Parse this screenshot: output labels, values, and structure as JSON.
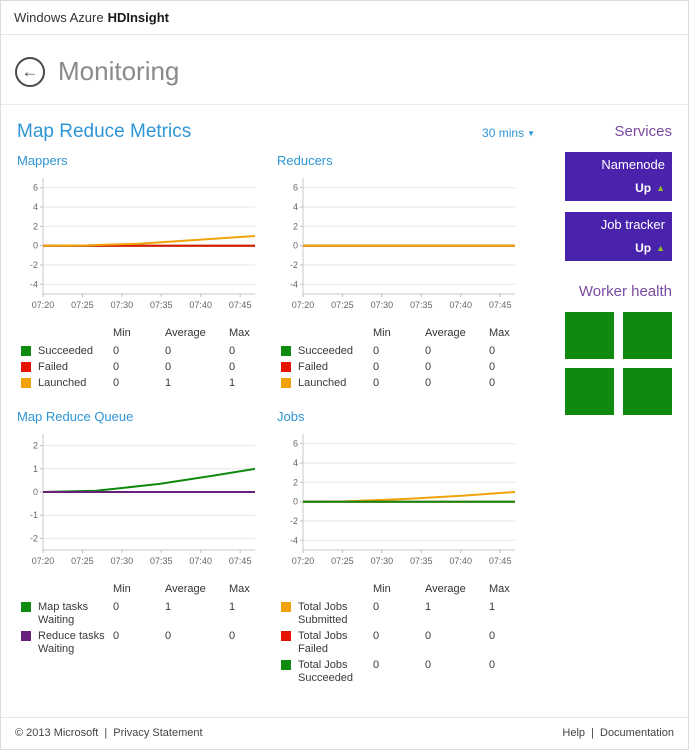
{
  "topbar": {
    "brand": "Windows Azure",
    "product": "HDInsight"
  },
  "page": {
    "title": "Monitoring"
  },
  "icons": {
    "back_arrow": "←",
    "caret_down": "▼",
    "up_triangle": "▲"
  },
  "colors": {
    "accent_blue": "#2e96d5",
    "heading_purple": "#7b4aa0",
    "tile_purple": "#4a23ad",
    "status_up_green": "#8cbf26",
    "worker_green": "#0e8a0e",
    "series_green": "#0e8a0e",
    "series_red": "#e51400",
    "series_orange": "#f0a30a",
    "series_purple": "#68217a"
  },
  "metrics": {
    "title": "Map Reduce Metrics",
    "time_range": "30 mins",
    "charts": [
      {
        "id": "mappers",
        "type": "line",
        "title": "Mappers",
        "yticks": [
          6,
          4,
          2,
          0,
          -2,
          -4
        ],
        "ymin": -5,
        "ymax": 7,
        "xticks": [
          "07:20",
          "07:25",
          "07:30",
          "07:35",
          "07:40",
          "07:45"
        ],
        "columns": [
          "Min",
          "Average",
          "Max"
        ],
        "series": [
          {
            "name": "Succeeded",
            "color": "#0e8a0e",
            "min": 0,
            "avg": 0,
            "max": 0,
            "points": [
              [
                0,
                0
              ],
              [
                1,
                0
              ]
            ]
          },
          {
            "name": "Failed",
            "color": "#e51400",
            "min": 0,
            "avg": 0,
            "max": 0,
            "points": [
              [
                0,
                0
              ],
              [
                1,
                0
              ]
            ]
          },
          {
            "name": "Launched",
            "color": "#f0a30a",
            "min": 0,
            "avg": 1,
            "max": 1,
            "points": [
              [
                0,
                0
              ],
              [
                0.2,
                0.03
              ],
              [
                0.45,
                0.2
              ],
              [
                0.7,
                0.55
              ],
              [
                1,
                1
              ]
            ]
          }
        ]
      },
      {
        "id": "reducers",
        "type": "line",
        "title": "Reducers",
        "yticks": [
          6,
          4,
          2,
          0,
          -2,
          -4
        ],
        "ymin": -5,
        "ymax": 7,
        "xticks": [
          "07:20",
          "07:25",
          "07:30",
          "07:35",
          "07:40",
          "07:45"
        ],
        "columns": [
          "Min",
          "Average",
          "Max"
        ],
        "series": [
          {
            "name": "Succeeded",
            "color": "#0e8a0e",
            "min": 0,
            "avg": 0,
            "max": 0,
            "points": [
              [
                0,
                0
              ],
              [
                1,
                0
              ]
            ]
          },
          {
            "name": "Failed",
            "color": "#e51400",
            "min": 0,
            "avg": 0,
            "max": 0,
            "points": [
              [
                0,
                0
              ],
              [
                1,
                0
              ]
            ]
          },
          {
            "name": "Launched",
            "color": "#f0a30a",
            "min": 0,
            "avg": 0,
            "max": 0,
            "points": [
              [
                0,
                0
              ],
              [
                1,
                0
              ]
            ]
          }
        ]
      },
      {
        "id": "map-reduce-queue",
        "type": "line",
        "title": "Map Reduce Queue",
        "yticks": [
          2,
          1,
          0,
          -1,
          -2
        ],
        "ymin": -2.5,
        "ymax": 2.5,
        "xticks": [
          "07:20",
          "07:25",
          "07:30",
          "07:35",
          "07:40",
          "07:45"
        ],
        "columns": [
          "Min",
          "Average",
          "Max"
        ],
        "series": [
          {
            "name": "Map tasks Waiting",
            "color": "#0e8a0e",
            "min": 0,
            "avg": 1,
            "max": 1,
            "points": [
              [
                0,
                0
              ],
              [
                0.25,
                0.05
              ],
              [
                0.55,
                0.35
              ],
              [
                0.8,
                0.7
              ],
              [
                1,
                1
              ]
            ]
          },
          {
            "name": "Reduce tasks Waiting",
            "color": "#68217a",
            "min": 0,
            "avg": 0,
            "max": 0,
            "points": [
              [
                0,
                0
              ],
              [
                1,
                0
              ]
            ]
          }
        ]
      },
      {
        "id": "jobs",
        "type": "line",
        "title": "Jobs",
        "yticks": [
          6,
          4,
          2,
          0,
          -2,
          -4
        ],
        "ymin": -5,
        "ymax": 7,
        "xticks": [
          "07:20",
          "07:25",
          "07:30",
          "07:35",
          "07:40",
          "07:45"
        ],
        "columns": [
          "Min",
          "Average",
          "Max"
        ],
        "series": [
          {
            "name": "Total Jobs Submitted",
            "color": "#f0a30a",
            "min": 0,
            "avg": 1,
            "max": 1,
            "points": [
              [
                0,
                0
              ],
              [
                0.2,
                0.03
              ],
              [
                0.5,
                0.3
              ],
              [
                0.75,
                0.62
              ],
              [
                1,
                1
              ]
            ]
          },
          {
            "name": "Total Jobs Failed",
            "color": "#e51400",
            "min": 0,
            "avg": 0,
            "max": 0,
            "points": [
              [
                0,
                0
              ],
              [
                1,
                0
              ]
            ]
          },
          {
            "name": "Total Jobs Succeeded",
            "color": "#0e8a0e",
            "min": 0,
            "avg": 0,
            "max": 0,
            "points": [
              [
                0,
                0
              ],
              [
                1,
                0
              ]
            ]
          }
        ]
      }
    ]
  },
  "services": {
    "title": "Services",
    "tiles": [
      {
        "name": "Namenode",
        "status": "Up"
      },
      {
        "name": "Job tracker",
        "status": "Up"
      }
    ]
  },
  "worker_health": {
    "title": "Worker health",
    "tile_count": 4
  },
  "footer": {
    "copyright": "© 2013 Microsoft",
    "separator": "|",
    "privacy_link": "Privacy Statement",
    "help_link": "Help",
    "docs_link": "Documentation"
  }
}
